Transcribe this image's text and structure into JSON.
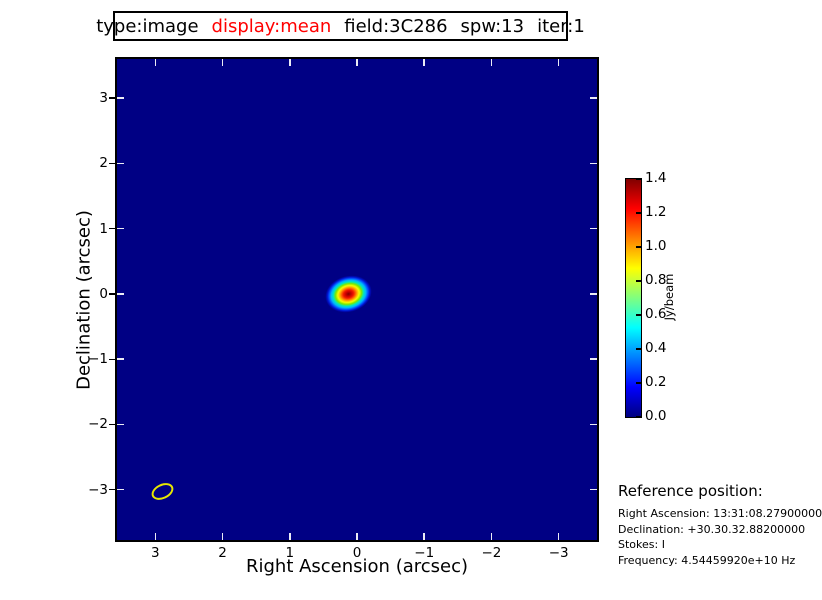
{
  "title_box": {
    "parts": [
      {
        "label": "type:image",
        "color": "#000000"
      },
      {
        "label": "display:mean",
        "color": "#ff0000"
      },
      {
        "label": "field:3C286",
        "color": "#000000"
      },
      {
        "label": "spw:13",
        "color": "#000000"
      },
      {
        "label": "iter:1",
        "color": "#000000"
      }
    ]
  },
  "chart_data": {
    "type": "heatmap",
    "title": "type:image display:mean field:3C286 spw:13 iter:1",
    "xlabel": "Right Ascension (arcsec)",
    "ylabel": "Declination (arcsec)",
    "xlim": {
      "left": 3.57,
      "right": -3.57
    },
    "ylim": {
      "top": 3.6,
      "bottom": -3.77
    },
    "x_ticks": {
      "values": [
        3,
        2,
        1,
        0,
        -1,
        -2,
        -3
      ],
      "labels": [
        "3",
        "2",
        "1",
        "0",
        "−1",
        "−2",
        "−3"
      ]
    },
    "y_ticks": {
      "values": [
        3,
        2,
        1,
        0,
        -1,
        -2,
        -3
      ],
      "labels": [
        "3",
        "2",
        "1",
        "0",
        "−1",
        "−2",
        "−3"
      ]
    },
    "background": {
      "value_jy_per_beam": 0.0,
      "color": "#000084"
    },
    "source": {
      "ra_offset_arcsec": 0.13,
      "dec_offset_arcsec": 0.0,
      "peak_jy_per_beam": 1.4,
      "extent_ra_arcsec": 0.56,
      "extent_dec_arcsec": 0.44,
      "rotation_deg": -16
    },
    "beam_ellipse": {
      "ra_offset_arcsec": 2.9,
      "dec_offset_arcsec": -3.03,
      "major_arcsec": 0.34,
      "minor_arcsec": 0.23,
      "rotation_deg": -25,
      "color": "#e8e800"
    },
    "colorbar": {
      "label": "Jy/beam",
      "min": 0.0,
      "max": 1.4,
      "tick_values": [
        0.0,
        0.2,
        0.4,
        0.6,
        0.8,
        1.0,
        1.2,
        1.4
      ],
      "tick_labels": [
        "0.0",
        "0.2",
        "0.4",
        "0.6",
        "0.8",
        "1.0",
        "1.2",
        "1.4"
      ],
      "colormap": "jet",
      "legend_position": "right"
    },
    "grid": false
  },
  "reference_block": {
    "heading": "Reference position:",
    "lines": [
      "Right Ascension: 13:31:08.27900000",
      "Declination: +30.30.32.88200000",
      "Stokes: I",
      "Frequency: 4.54459920e+10 Hz"
    ]
  },
  "colors": {
    "plot_background": "#000084",
    "accent_red": "#ff0000",
    "beam_yellow": "#e8e800"
  }
}
